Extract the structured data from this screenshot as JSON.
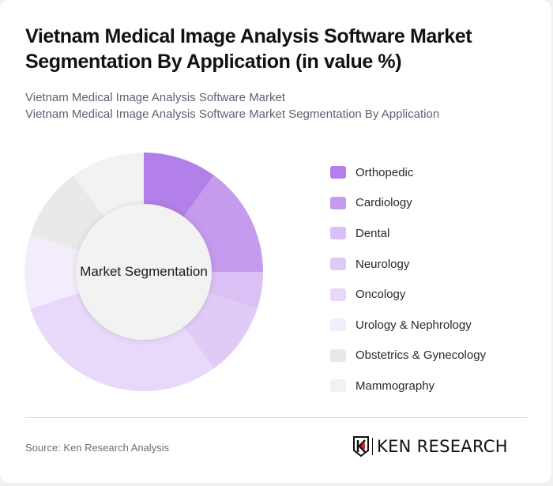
{
  "header": {
    "title": "Vietnam Medical Image Analysis Software Market Segmentation By Application (in value %)",
    "subtitle_line1": "Vietnam Medical Image Analysis Software Market",
    "subtitle_line2": "Vietnam Medical Image Analysis Software Market Segmentation By Application"
  },
  "chart": {
    "center_label": "Market Segmentation"
  },
  "legend": {
    "items": [
      {
        "label": "Orthopedic",
        "color": "#b37fe9"
      },
      {
        "label": "Cardiology",
        "color": "#c59bed"
      },
      {
        "label": "Dental",
        "color": "#dbc0f5"
      },
      {
        "label": "Neurology",
        "color": "#e0cbf6"
      },
      {
        "label": "Oncology",
        "color": "#e8d8f9"
      },
      {
        "label": "Urology & Nephrology",
        "color": "#f3ecfc"
      },
      {
        "label": "Obstetrics & Gynecology",
        "color": "#e9e9e9"
      },
      {
        "label": "Mammography",
        "color": "#f2f2f2"
      }
    ]
  },
  "footer": {
    "source": "Source: Ken Research Analysis",
    "logo_text": "KEN RESEARCH"
  },
  "chart_data": {
    "type": "pie",
    "title": "Vietnam Medical Image Analysis Software Market Segmentation By Application (in value %)",
    "subtitle": "Vietnam Medical Image Analysis Software Market Segmentation By Application",
    "center_label": "Market Segmentation",
    "categories": [
      "Orthopedic",
      "Cardiology",
      "Dental",
      "Neurology",
      "Oncology",
      "Urology & Nephrology",
      "Obstetrics & Gynecology",
      "Mammography"
    ],
    "values": [
      10,
      15,
      5,
      10,
      30,
      10,
      10,
      10
    ],
    "colors": [
      "#b37fe9",
      "#c59bed",
      "#dbc0f5",
      "#e0cbf6",
      "#e8d8f9",
      "#f3ecfc",
      "#e9e9e9",
      "#f2f2f2"
    ],
    "legend_position": "right",
    "donut": true
  }
}
